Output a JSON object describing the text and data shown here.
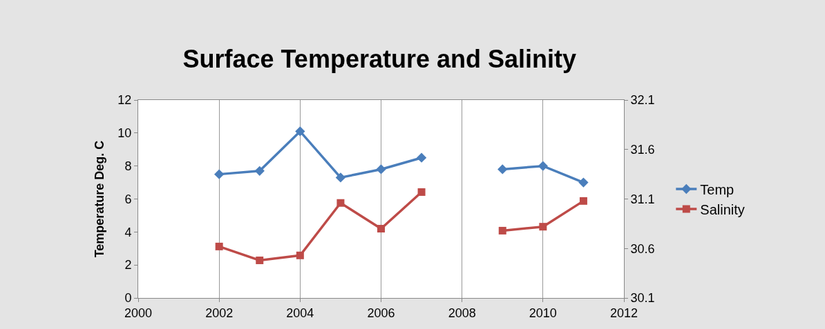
{
  "chart_data": {
    "type": "line",
    "title": "Surface Temperature and Salinity",
    "ylabel": "Temperature Deg. C",
    "x": [
      2002,
      2003,
      2004,
      2005,
      2006,
      2007,
      2008,
      2009,
      2010,
      2011
    ],
    "series": [
      {
        "name": "Temp",
        "color": "#4a7ebb",
        "marker": "diamond",
        "values": [
          7.5,
          7.7,
          10.1,
          7.3,
          7.8,
          8.5,
          null,
          7.8,
          8.0,
          7.0
        ]
      },
      {
        "name": "Salinity",
        "color": "#be4b48",
        "marker": "square",
        "axis": "y2",
        "values": [
          30.62,
          30.48,
          30.53,
          31.06,
          30.8,
          31.17,
          null,
          30.78,
          30.82,
          31.08
        ]
      }
    ],
    "xlim": [
      2000,
      2012
    ],
    "xticks": [
      2000,
      2002,
      2004,
      2006,
      2008,
      2010,
      2012
    ],
    "ylim": [
      0,
      12
    ],
    "yticks": [
      0,
      2,
      4,
      6,
      8,
      10,
      12
    ],
    "y2lim": [
      30.1,
      32.1
    ],
    "y2ticks": [
      30.1,
      30.6,
      31.1,
      31.6,
      32.1
    ],
    "grid": "x",
    "legend": "right"
  }
}
